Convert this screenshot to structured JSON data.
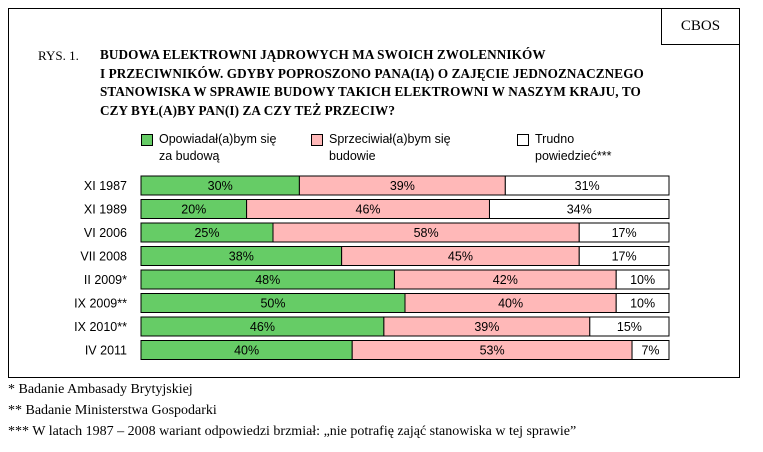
{
  "source_label": "CBOS",
  "figure_label": "RYS. 1.",
  "title_lines": [
    "BUDOWA ELEKTROWNI JĄDROWYCH MA SWOICH ZWOLENNIKÓW",
    "I PRZECIWNIKÓW. GDYBY POPROSZONO PANA(IĄ) O ZAJĘCIE JEDNOZNACZNEGO",
    "STANOWISKA W SPRAWIE BUDOWY TAKICH ELEKTROWNI W NASZYM KRAJU, TO",
    "CZY BYŁ(A)BY PAN(I) ZA CZY TEŻ PRZECIW?"
  ],
  "colors": {
    "support": "#66cc66",
    "oppose": "#ffb8b8",
    "unsure": "#ffffff",
    "border": "#000000"
  },
  "chart_data": {
    "type": "bar",
    "orientation": "horizontal",
    "stacked": true,
    "categories": [
      "XI 1987",
      "XI 1989",
      "VI 2006",
      "VII 2008",
      "II 2009*",
      "IX 2009**",
      "IX 2010**",
      "IV 2011"
    ],
    "series": [
      {
        "name": "Opowiadał(a)bym się za budową",
        "legend_lines": [
          "Opowiadał(a)bym się",
          "za budową"
        ],
        "color": "#66cc66",
        "values": [
          30,
          20,
          25,
          38,
          48,
          50,
          46,
          40
        ]
      },
      {
        "name": "Sprzeciwiał(a)bym się budowie",
        "legend_lines": [
          "Sprzeciwiał(a)bym się",
          "budowie"
        ],
        "color": "#ffb8b8",
        "values": [
          39,
          46,
          58,
          45,
          42,
          40,
          39,
          53
        ]
      },
      {
        "name": "Trudno powiedzieć***",
        "legend_lines": [
          "Trudno",
          "powiedzieć***"
        ],
        "color": "#ffffff",
        "values": [
          31,
          34,
          17,
          17,
          10,
          10,
          15,
          7
        ]
      }
    ],
    "value_suffix": "%",
    "xlim": [
      0,
      100
    ],
    "legend": "top"
  },
  "footnotes": [
    "* Badanie Ambasady Brytyjskiej",
    "** Badanie Ministerstwa Gospodarki",
    "*** W latach 1987 – 2008 wariant odpowiedzi brzmiał: „nie potrafię zająć stanowiska w tej sprawie”"
  ]
}
